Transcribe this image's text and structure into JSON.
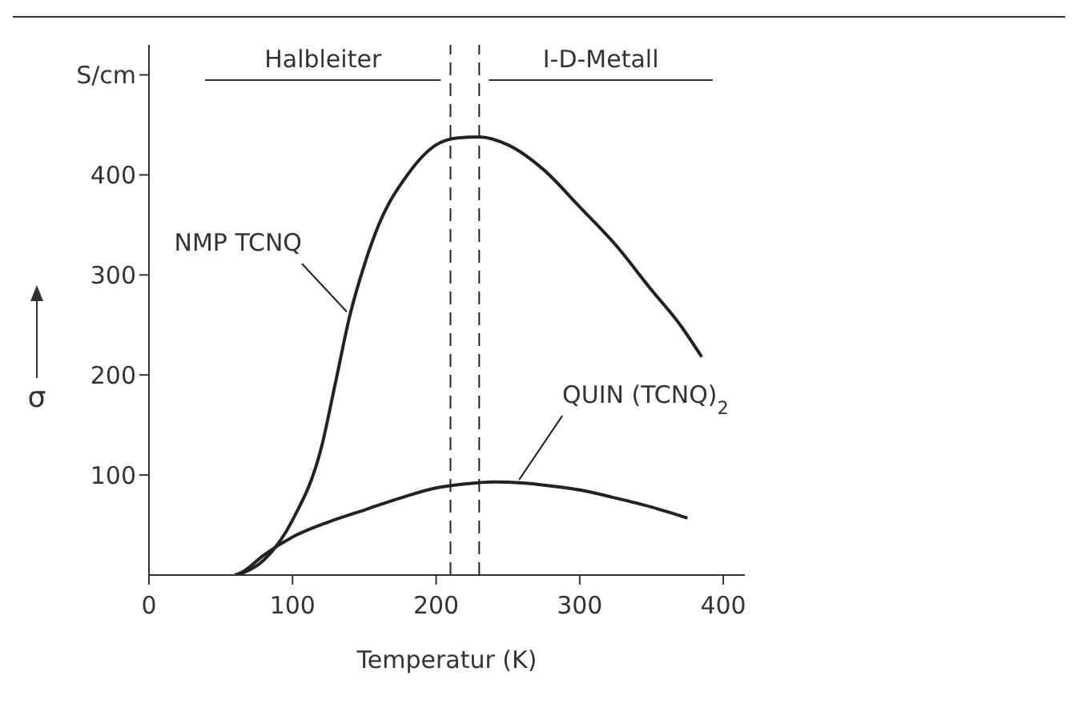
{
  "chart_data": {
    "type": "line",
    "xlabel": "Temperatur (K)",
    "ylabel": "σ",
    "xlim": [
      0,
      415
    ],
    "ylim": [
      0,
      530
    ],
    "xticks": [
      0,
      100,
      200,
      300,
      400
    ],
    "yticks": [
      100,
      200,
      300,
      400,
      {
        "value": 500,
        "label": "S/cm"
      }
    ],
    "series": [
      {
        "name": "NMP TCNQ",
        "color": "#222222",
        "x": [
          60,
          65,
          80,
          100,
          120,
          130,
          140,
          150,
          160,
          180,
          200,
          215,
          230,
          250,
          275,
          300,
          325,
          350,
          370,
          385
        ],
        "values": [
          0,
          2,
          15,
          55,
          127,
          193,
          260,
          310,
          350,
          400,
          430,
          437,
          438,
          430,
          405,
          368,
          330,
          285,
          250,
          218
        ]
      },
      {
        "name": "QUIN (TCNQ)$_{2}$",
        "color": "#222222",
        "x": [
          60,
          65,
          80,
          100,
          125,
          150,
          175,
          200,
          220,
          240,
          260,
          280,
          300,
          325,
          350,
          375
        ],
        "values": [
          0,
          3,
          20,
          38,
          53,
          65,
          77,
          87,
          91,
          93,
          92,
          89,
          85,
          77,
          68,
          57
        ]
      }
    ],
    "ref_lines": [
      {
        "axis": "x",
        "value": 210,
        "color": "#222222",
        "line_style": "dashed"
      },
      {
        "axis": "x",
        "value": 230,
        "color": "#222222",
        "line_style": "dashed"
      }
    ],
    "annotations": [
      "Halbleiter",
      "I-D-Metall"
    ],
    "marker": "none",
    "line_style": "solid",
    "grid": false,
    "legend": false
  }
}
